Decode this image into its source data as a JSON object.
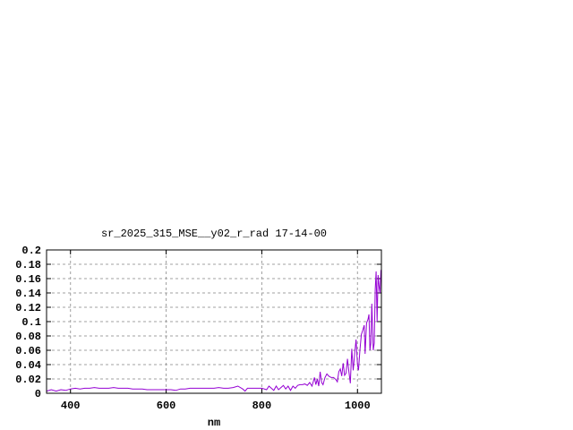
{
  "chart_data": {
    "type": "line",
    "title": "sr_2025_315_MSE__y02_r_rad 17-14-00",
    "xlabel": "nm",
    "ylabel": "",
    "xlim": [
      350,
      1050
    ],
    "ylim": [
      0,
      0.2
    ],
    "xticks": [
      400,
      600,
      800,
      1000
    ],
    "xtick_labels": [
      "400",
      "600",
      "800",
      "1000"
    ],
    "yticks": [
      0,
      0.02,
      0.04,
      0.06,
      0.08,
      0.1,
      0.12,
      0.14,
      0.16,
      0.18,
      0.2
    ],
    "ytick_labels": [
      "0",
      "0.02",
      "0.04",
      "0.06",
      "0.08",
      "0.1",
      "0.12",
      "0.14",
      "0.16",
      "0.18",
      "0.2"
    ],
    "grid": true,
    "legend": "none",
    "line_color": "#9400d3",
    "series": [
      {
        "x": [
          350,
          360,
          370,
          380,
          390,
          400,
          410,
          420,
          430,
          440,
          450,
          460,
          470,
          480,
          490,
          500,
          510,
          520,
          530,
          540,
          550,
          560,
          570,
          580,
          590,
          600,
          610,
          620,
          630,
          640,
          650,
          660,
          670,
          680,
          690,
          700,
          710,
          720,
          730,
          740,
          750,
          760,
          765,
          770,
          780,
          790,
          800,
          810,
          815,
          820,
          825,
          830,
          835,
          840,
          845,
          850,
          855,
          860,
          865,
          870,
          875,
          880,
          885,
          890,
          895,
          900,
          905,
          910,
          913,
          916,
          919,
          922,
          925,
          928,
          932,
          936,
          940,
          945,
          950,
          955,
          958,
          961,
          964,
          967,
          970,
          973,
          976,
          979,
          982,
          985,
          988,
          991,
          994,
          997,
          1000,
          1002,
          1005,
          1008,
          1011,
          1014,
          1016,
          1019,
          1022,
          1024,
          1026,
          1028,
          1030,
          1033,
          1035,
          1037,
          1039,
          1041,
          1043,
          1045,
          1047,
          1049
        ],
        "y": [
          0.003,
          0.005,
          0.003,
          0.005,
          0.004,
          0.006,
          0.007,
          0.006,
          0.007,
          0.007,
          0.008,
          0.007,
          0.007,
          0.007,
          0.008,
          0.007,
          0.007,
          0.007,
          0.006,
          0.006,
          0.006,
          0.005,
          0.005,
          0.005,
          0.005,
          0.005,
          0.005,
          0.004,
          0.006,
          0.006,
          0.007,
          0.007,
          0.007,
          0.007,
          0.007,
          0.007,
          0.008,
          0.007,
          0.007,
          0.008,
          0.01,
          0.006,
          0.003,
          0.007,
          0.007,
          0.007,
          0.007,
          0.005,
          0.01,
          0.007,
          0.004,
          0.01,
          0.005,
          0.008,
          0.011,
          0.006,
          0.01,
          0.004,
          0.01,
          0.007,
          0.011,
          0.012,
          0.012,
          0.013,
          0.011,
          0.015,
          0.01,
          0.022,
          0.012,
          0.02,
          0.01,
          0.03,
          0.015,
          0.012,
          0.022,
          0.027,
          0.024,
          0.022,
          0.022,
          0.019,
          0.016,
          0.03,
          0.034,
          0.024,
          0.042,
          0.025,
          0.028,
          0.048,
          0.03,
          0.014,
          0.062,
          0.032,
          0.055,
          0.075,
          0.04,
          0.032,
          0.06,
          0.082,
          0.088,
          0.095,
          0.055,
          0.098,
          0.103,
          0.11,
          0.06,
          0.07,
          0.125,
          0.06,
          0.07,
          0.145,
          0.17,
          0.1,
          0.165,
          0.15,
          0.14,
          0.172
        ]
      }
    ]
  }
}
